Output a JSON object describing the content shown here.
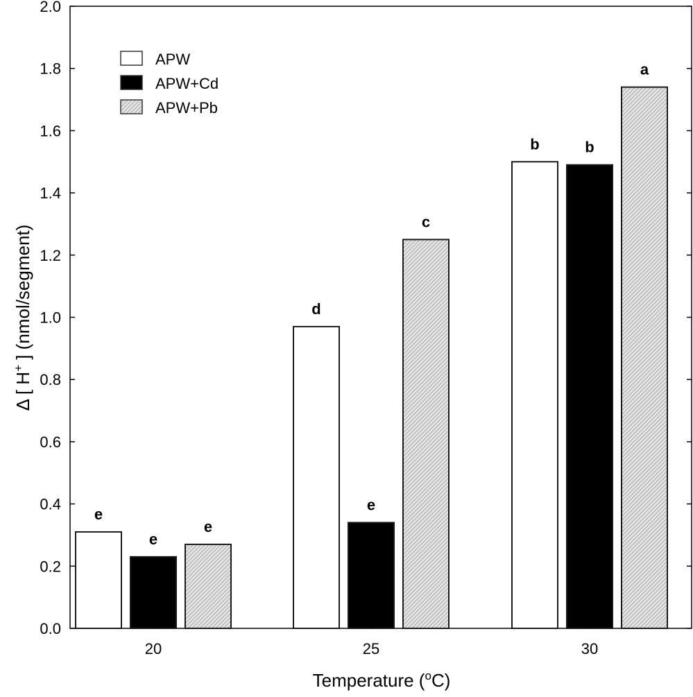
{
  "chart_data": {
    "type": "bar",
    "title": "",
    "xlabel": "Temperature (oC)",
    "xlabel_parts": {
      "main": "Temperature (",
      "sup": "o",
      "tail": "C)"
    },
    "ylabel": "Δ [ H+ ] (nmol/segment)",
    "ylabel_parts": {
      "pre": "Δ [ H",
      "sup": "+",
      "tail": " ] (nmol/segment)"
    },
    "categories": [
      "20",
      "25",
      "30"
    ],
    "ylim": [
      0,
      2.0
    ],
    "yticks": [
      "0.0",
      "0.2",
      "0.4",
      "0.6",
      "0.8",
      "1.0",
      "1.2",
      "1.4",
      "1.6",
      "1.8",
      "2.0"
    ],
    "grid": false,
    "legend_position": "top-left",
    "series": [
      {
        "name": "APW",
        "fill": "white",
        "values": [
          0.31,
          0.97,
          1.5
        ],
        "labels": [
          "e",
          "d",
          "b"
        ]
      },
      {
        "name": "APW+Cd",
        "fill": "black",
        "values": [
          0.23,
          0.34,
          1.49
        ],
        "labels": [
          "e",
          "e",
          "b"
        ]
      },
      {
        "name": "APW+Pb",
        "fill": "hatched",
        "values": [
          0.27,
          1.25,
          1.74
        ],
        "labels": [
          "e",
          "c",
          "a"
        ]
      }
    ]
  },
  "colors": {
    "axis": "#000000",
    "white_bar": "#ffffff",
    "black_bar": "#000000",
    "hatch_bg": "#e6e6e6",
    "hatch_line": "#8a8a8a"
  }
}
